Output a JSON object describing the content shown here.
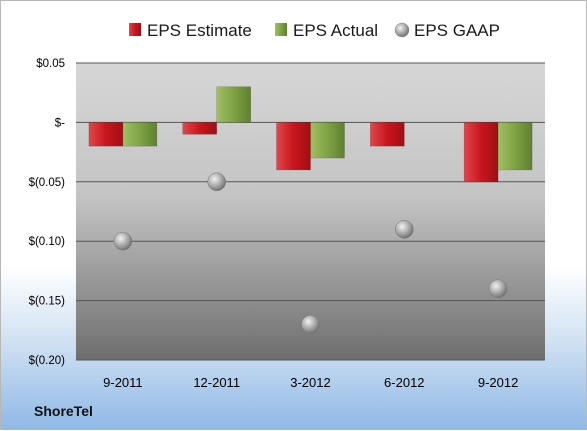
{
  "company": "ShoreTel",
  "colors": {
    "estimate": "#d0252b",
    "actual": "#7fa244",
    "gaap": "#b0b0b0"
  },
  "chart_data": {
    "type": "bar",
    "categories": [
      "9-2011",
      "12-2011",
      "3-2012",
      "6-2012",
      "9-2012"
    ],
    "series": [
      {
        "name": "EPS Estimate",
        "type": "bar",
        "values": [
          -0.02,
          -0.01,
          -0.04,
          -0.02,
          -0.05
        ]
      },
      {
        "name": "EPS Actual",
        "type": "bar",
        "values": [
          -0.02,
          0.03,
          -0.03,
          null,
          -0.04
        ]
      },
      {
        "name": "EPS GAAP",
        "type": "scatter",
        "values": [
          -0.1,
          -0.05,
          -0.17,
          -0.09,
          -0.14
        ]
      }
    ],
    "ylim": [
      -0.2,
      0.05
    ],
    "yticks": [
      {
        "value": 0.05,
        "label": "$0.05"
      },
      {
        "value": 0.0,
        "label": "$-"
      },
      {
        "value": -0.05,
        "label": "$(0.05)"
      },
      {
        "value": -0.1,
        "label": "$(0.10)"
      },
      {
        "value": -0.15,
        "label": "$(0.15)"
      },
      {
        "value": -0.2,
        "label": "$(0.20)"
      }
    ],
    "grid": true,
    "legend": "top"
  }
}
